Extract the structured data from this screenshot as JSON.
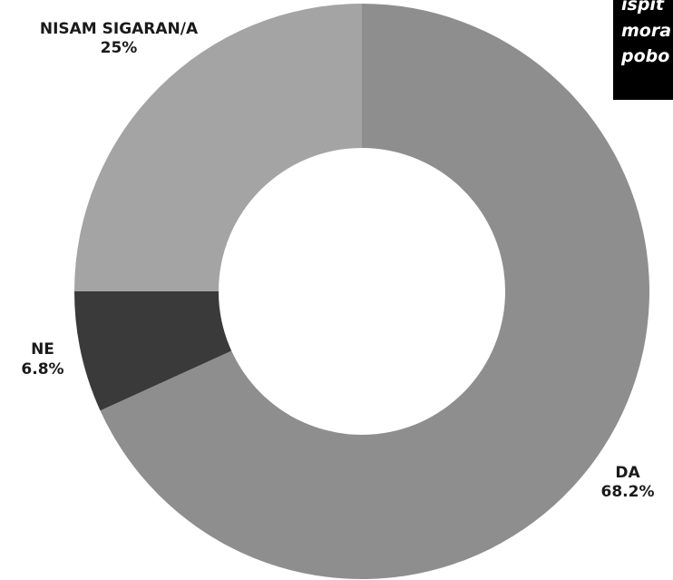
{
  "chart_data": {
    "type": "pie",
    "variant": "donut",
    "slices": [
      {
        "label": "DA",
        "percent_label": "68.2%",
        "value": 68.2,
        "color": "#8e8e8e"
      },
      {
        "label": "NE",
        "percent_label": "6.8%",
        "value": 6.8,
        "color": "#3a3a3a"
      },
      {
        "label": "NISAM SIGARAN/A",
        "percent_label": "25%",
        "value": 25,
        "color": "#a4a4a4"
      }
    ],
    "start_angle": "12 o'clock",
    "direction": "clockwise",
    "legend": "none"
  },
  "caption": {
    "lines": [
      "ispit",
      "mora",
      "pobo"
    ],
    "background": "#000000",
    "color": "#ffffff"
  }
}
